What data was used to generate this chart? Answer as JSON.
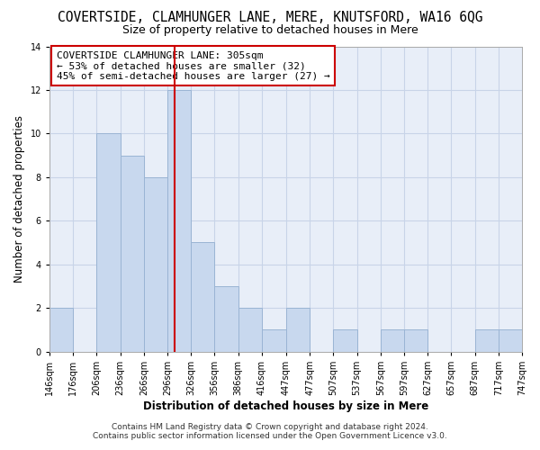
{
  "title": "COVERTSIDE, CLAMHUNGER LANE, MERE, KNUTSFORD, WA16 6QG",
  "subtitle": "Size of property relative to detached houses in Mere",
  "xlabel": "Distribution of detached houses by size in Mere",
  "ylabel": "Number of detached properties",
  "bin_edges": [
    146,
    176,
    206,
    236,
    266,
    296,
    326,
    356,
    386,
    416,
    447,
    477,
    507,
    537,
    567,
    597,
    627,
    657,
    687,
    717,
    747
  ],
  "bin_counts": [
    2,
    0,
    10,
    9,
    8,
    12,
    5,
    3,
    2,
    1,
    2,
    0,
    1,
    0,
    1,
    1,
    0,
    0,
    1,
    1
  ],
  "bar_color": "#c8d8ee",
  "bar_edge_color": "#9ab4d4",
  "vline_x": 305,
  "vline_color": "#cc0000",
  "ylim": [
    0,
    14
  ],
  "yticks": [
    0,
    2,
    4,
    6,
    8,
    10,
    12,
    14
  ],
  "annotation_title": "COVERTSIDE CLAMHUNGER LANE: 305sqm",
  "annotation_line1": "← 53% of detached houses are smaller (32)",
  "annotation_line2": "45% of semi-detached houses are larger (27) →",
  "footer1": "Contains HM Land Registry data © Crown copyright and database right 2024.",
  "footer2": "Contains public sector information licensed under the Open Government Licence v3.0.",
  "background_color": "#ffffff",
  "plot_bg_color": "#e8eef8",
  "grid_color": "#c8d4e8",
  "title_fontsize": 10.5,
  "subtitle_fontsize": 9,
  "tick_label_fontsize": 7,
  "axis_label_fontsize": 8.5,
  "annotation_fontsize": 8,
  "footer_fontsize": 6.5
}
